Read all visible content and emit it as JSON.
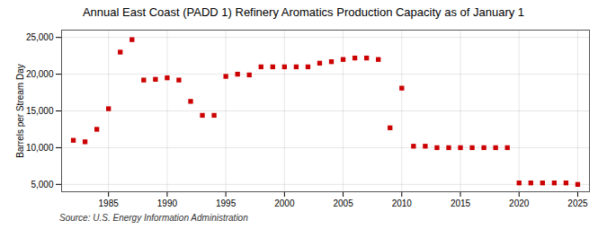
{
  "chart_data": {
    "type": "scatter",
    "title": "Annual East Coast (PADD 1) Refinery Aromatics Production Capacity as of January 1",
    "ylabel": "Barrels per Stream Day",
    "source": "Source: U.S. Energy Information Administration",
    "color": "#cc0000",
    "marker": "square",
    "x": [
      1982,
      1983,
      1984,
      1985,
      1986,
      1987,
      1988,
      1989,
      1990,
      1991,
      1992,
      1993,
      1994,
      1995,
      1996,
      1997,
      1998,
      1999,
      2000,
      2001,
      2002,
      2003,
      2004,
      2005,
      2006,
      2007,
      2008,
      2009,
      2010,
      2011,
      2012,
      2013,
      2014,
      2015,
      2016,
      2017,
      2018,
      2019,
      2020,
      2021,
      2022,
      2023,
      2024,
      2025
    ],
    "values": [
      11000,
      10800,
      12500,
      15300,
      23000,
      24700,
      19200,
      19300,
      19500,
      19200,
      16300,
      14400,
      14400,
      19700,
      20000,
      19900,
      21000,
      21000,
      21000,
      21000,
      21000,
      21500,
      21700,
      22000,
      22200,
      22200,
      22000,
      12700,
      18100,
      10200,
      10200,
      10000,
      10000,
      10000,
      10000,
      10000,
      10000,
      10000,
      5200,
      5200,
      5200,
      5200,
      5200,
      5000
    ],
    "xlim": [
      1981,
      2026
    ],
    "ylim": [
      4000,
      26000
    ],
    "xticks": [
      1985,
      1990,
      1995,
      2000,
      2005,
      2010,
      2015,
      2020,
      2025
    ],
    "yticks": [
      {
        "value": 5000,
        "label": "5,000"
      },
      {
        "value": 10000,
        "label": "10,000"
      },
      {
        "value": 15000,
        "label": "15,000"
      },
      {
        "value": 20000,
        "label": "20,000"
      },
      {
        "value": 25000,
        "label": "25,000"
      }
    ],
    "grid": true
  }
}
